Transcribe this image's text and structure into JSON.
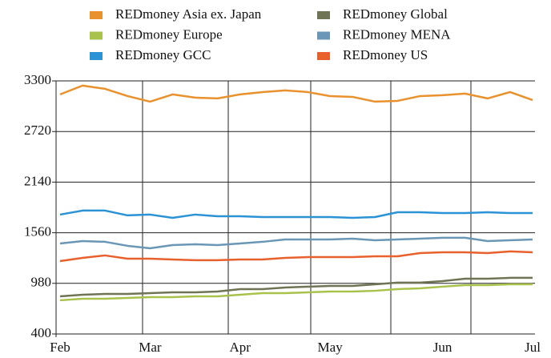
{
  "chart_data": {
    "type": "line",
    "categories": [
      "Feb",
      null,
      null,
      null,
      "Mar",
      null,
      null,
      null,
      "Apr",
      null,
      null,
      null,
      "May",
      null,
      null,
      null,
      null,
      "Jun",
      null,
      null,
      null,
      "Jul"
    ],
    "series": [
      {
        "name": "REDmoney Asia ex. Japan",
        "color": "#e8912d",
        "values": [
          3145,
          3246,
          3209,
          3126,
          3062,
          3145,
          3108,
          3099,
          3145,
          3172,
          3191,
          3172,
          3126,
          3117,
          3062,
          3071,
          3126,
          3136,
          3154,
          3099,
          3172,
          3080
        ]
      },
      {
        "name": "REDmoney Global",
        "color": "#6f7455",
        "values": [
          831,
          850,
          859,
          859,
          868,
          877,
          877,
          886,
          914,
          914,
          932,
          942,
          951,
          951,
          969,
          988,
          988,
          1006,
          1033,
          1033,
          1043,
          1043
        ]
      },
      {
        "name": "REDmoney Europe",
        "color": "#a9c24c",
        "values": [
          786,
          804,
          804,
          813,
          822,
          822,
          831,
          831,
          850,
          868,
          868,
          877,
          886,
          886,
          895,
          914,
          923,
          942,
          960,
          960,
          969,
          969
        ]
      },
      {
        "name": "REDmoney MENA",
        "color": "#6a97b6",
        "values": [
          1437,
          1465,
          1456,
          1410,
          1382,
          1419,
          1428,
          1419,
          1437,
          1456,
          1483,
          1483,
          1483,
          1492,
          1474,
          1483,
          1492,
          1502,
          1502,
          1465,
          1474,
          1483
        ]
      },
      {
        "name": "REDmoney GCC",
        "color": "#2b93d5",
        "values": [
          1768,
          1814,
          1814,
          1759,
          1768,
          1731,
          1768,
          1749,
          1749,
          1740,
          1740,
          1740,
          1740,
          1731,
          1740,
          1795,
          1795,
          1786,
          1786,
          1795,
          1786,
          1786
        ]
      },
      {
        "name": "REDmoney US",
        "color": "#e8602c",
        "values": [
          1235,
          1272,
          1300,
          1263,
          1263,
          1254,
          1245,
          1245,
          1254,
          1254,
          1272,
          1281,
          1281,
          1281,
          1290,
          1290,
          1327,
          1336,
          1336,
          1327,
          1346,
          1336
        ]
      }
    ],
    "ylim": [
      400,
      3300
    ],
    "yticks": [
      400,
      980,
      1560,
      2140,
      2720,
      3300
    ],
    "grid": true
  }
}
